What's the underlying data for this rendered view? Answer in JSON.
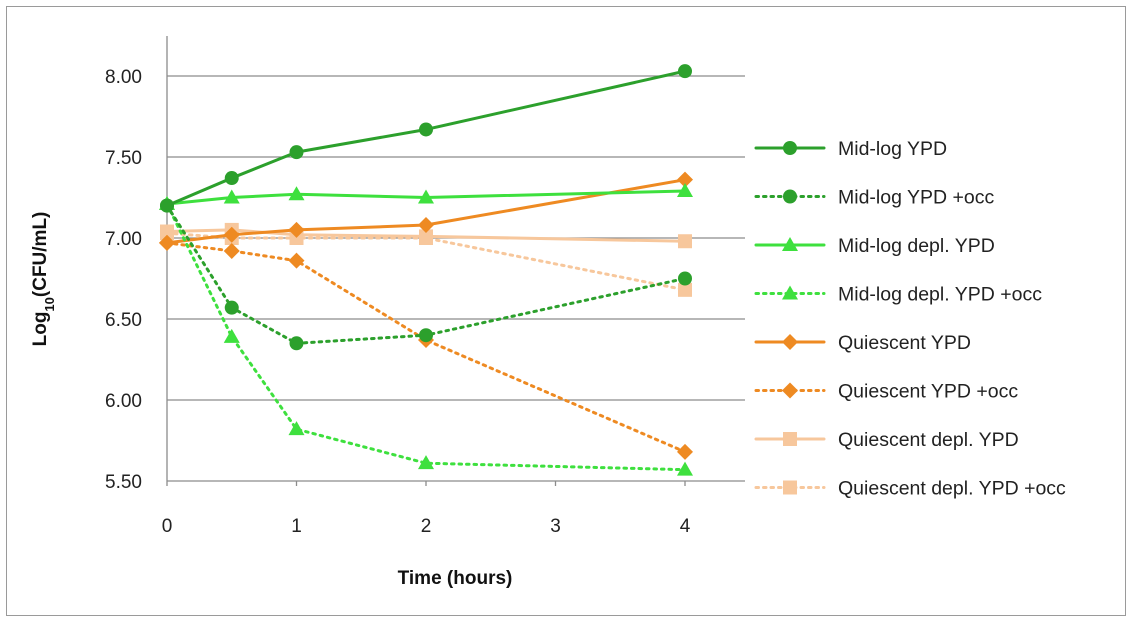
{
  "chart_data": {
    "type": "line",
    "xlabel": "Time (hours)",
    "ylabel_main": "Log",
    "ylabel_sub": "10",
    "ylabel_rest": "(CFU/mL)",
    "x_ticks": [
      "0",
      "1",
      "2",
      "3",
      "4"
    ],
    "y_ticks": [
      "5.50",
      "6.00",
      "6.50",
      "7.00",
      "7.50",
      "8.00"
    ],
    "xlim": [
      0,
      4
    ],
    "ylim": [
      5.5,
      8.25
    ],
    "grid": "horizontal",
    "legend_position": "right",
    "series": [
      {
        "name": "Mid-log YPD",
        "color": "#2ca02c",
        "dash": "solid",
        "marker": "circle",
        "x": [
          0,
          0.5,
          1,
          2,
          4
        ],
        "y": [
          7.2,
          7.37,
          7.53,
          7.67,
          8.03
        ]
      },
      {
        "name": "Mid-log YPD +occ",
        "color": "#2ca02c",
        "dash": "dotted",
        "marker": "circle",
        "x": [
          0,
          0.5,
          1,
          2,
          4
        ],
        "y": [
          7.2,
          6.57,
          6.35,
          6.4,
          6.75
        ]
      },
      {
        "name": "Mid-log depl. YPD",
        "color": "#3ee03e",
        "dash": "solid",
        "marker": "triangle",
        "x": [
          0,
          0.5,
          1,
          2,
          4
        ],
        "y": [
          7.21,
          7.25,
          7.27,
          7.25,
          7.29
        ]
      },
      {
        "name": "Mid-log depl. YPD +occ",
        "color": "#3ee03e",
        "dash": "dotted",
        "marker": "triangle",
        "x": [
          0,
          0.5,
          1,
          2,
          4
        ],
        "y": [
          7.21,
          6.39,
          5.82,
          5.61,
          5.57
        ]
      },
      {
        "name": "Quiescent YPD",
        "color": "#ee8a22",
        "dash": "solid",
        "marker": "diamond",
        "x": [
          0,
          0.5,
          1,
          2,
          4
        ],
        "y": [
          6.97,
          7.02,
          7.05,
          7.08,
          7.36
        ]
      },
      {
        "name": "Quiescent YPD +occ",
        "color": "#ee8a22",
        "dash": "dotted",
        "marker": "diamond",
        "x": [
          0,
          0.5,
          1,
          2,
          4
        ],
        "y": [
          6.97,
          6.92,
          6.86,
          6.37,
          5.68
        ]
      },
      {
        "name": "Quiescent depl. YPD",
        "color": "#f7c79c",
        "dash": "solid",
        "marker": "square",
        "x": [
          0,
          0.5,
          1,
          2,
          4
        ],
        "y": [
          7.04,
          7.05,
          7.02,
          7.01,
          6.98
        ]
      },
      {
        "name": "Quiescent depl. YPD +occ",
        "color": "#f7c79c",
        "dash": "dotted",
        "marker": "square",
        "x": [
          0,
          0.5,
          1,
          2,
          4
        ],
        "y": [
          7.03,
          7.0,
          7.0,
          7.0,
          6.68
        ]
      }
    ]
  }
}
